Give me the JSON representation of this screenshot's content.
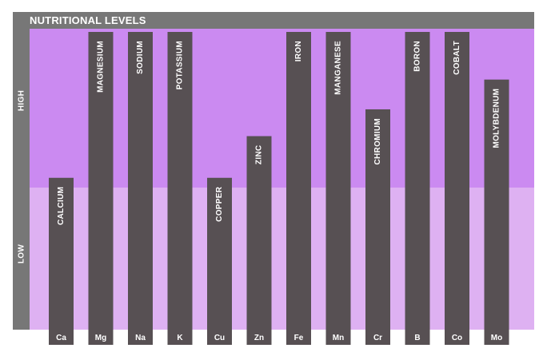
{
  "chart_data": {
    "type": "bar",
    "title": "NUTRITIONAL LEVELS",
    "xlabel": "",
    "ylabel": "",
    "zones": [
      "LOW",
      "HIGH"
    ],
    "ylim": [
      0,
      1
    ],
    "categories": [
      "Ca",
      "Mg",
      "Na",
      "K",
      "Cu",
      "Zn",
      "Fe",
      "Mn",
      "Cr",
      "B",
      "Co",
      "Mo"
    ],
    "series": [
      {
        "labels": [
          "CALCIUM",
          "MAGNESIUM",
          "SODIUM",
          "POTASSIUM",
          "COPPER",
          "ZINC",
          "IRON",
          "MANGANESE",
          "CHROMIUM",
          "BORON",
          "COBALT",
          "MOLYBDENUM"
        ],
        "values": [
          0.51,
          1.0,
          1.0,
          1.0,
          0.51,
          0.65,
          1.0,
          1.0,
          0.74,
          1.0,
          1.0,
          0.84
        ]
      }
    ],
    "grid": false,
    "colors": {
      "bar": "#575053",
      "high_band": "#cb8af1",
      "low_band": "#deb1f2",
      "frame": "#777777",
      "text": "#ffffff"
    }
  }
}
